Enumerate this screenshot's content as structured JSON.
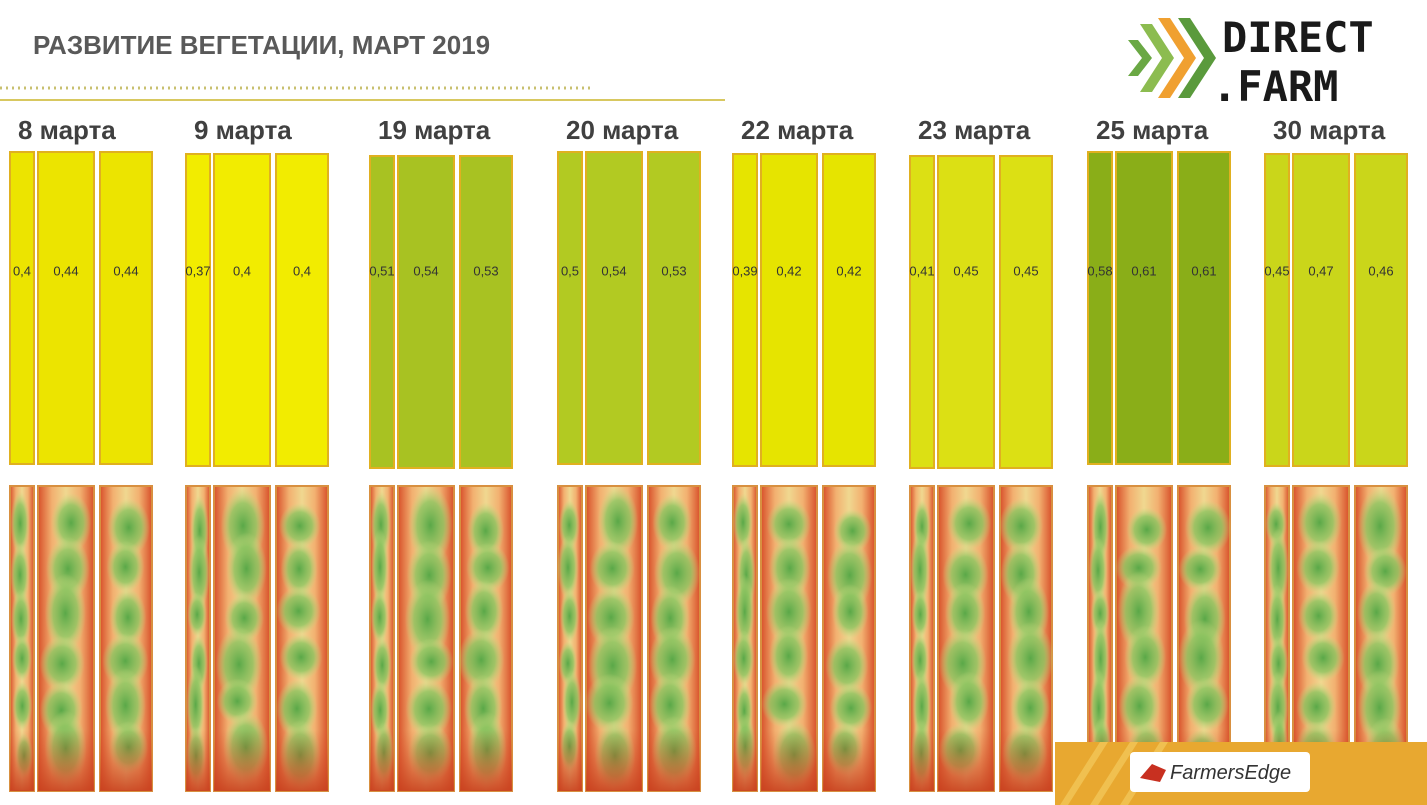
{
  "header": {
    "title": "РАЗВИТИЕ ВЕГЕТАЦИИ, МАРТ 2019",
    "logo": {
      "line1": "DIRECT",
      "line2": ".FARM"
    }
  },
  "dates": [
    {
      "label": "8 марта",
      "values": [
        "0,4",
        "0,44",
        "0,44"
      ]
    },
    {
      "label": "9 марта",
      "values": [
        "0,37",
        "0,4",
        "0,4"
      ]
    },
    {
      "label": "19 марта",
      "values": [
        "0,51",
        "0,54",
        "0,53"
      ]
    },
    {
      "label": "20 марта",
      "values": [
        "0,5",
        "0,54",
        "0,53"
      ]
    },
    {
      "label": "22 марта",
      "values": [
        "0,39",
        "0,42",
        "0,42"
      ]
    },
    {
      "label": "23 марта",
      "values": [
        "0,41",
        "0,45",
        "0,45"
      ]
    },
    {
      "label": "25 марта",
      "values": [
        "0,58",
        "0,61",
        "0,61"
      ]
    },
    {
      "label": "30 марта",
      "values": [
        "0,45",
        "0,47",
        "0,46"
      ]
    }
  ],
  "footer": {
    "brand": "FarmersEdge"
  }
}
